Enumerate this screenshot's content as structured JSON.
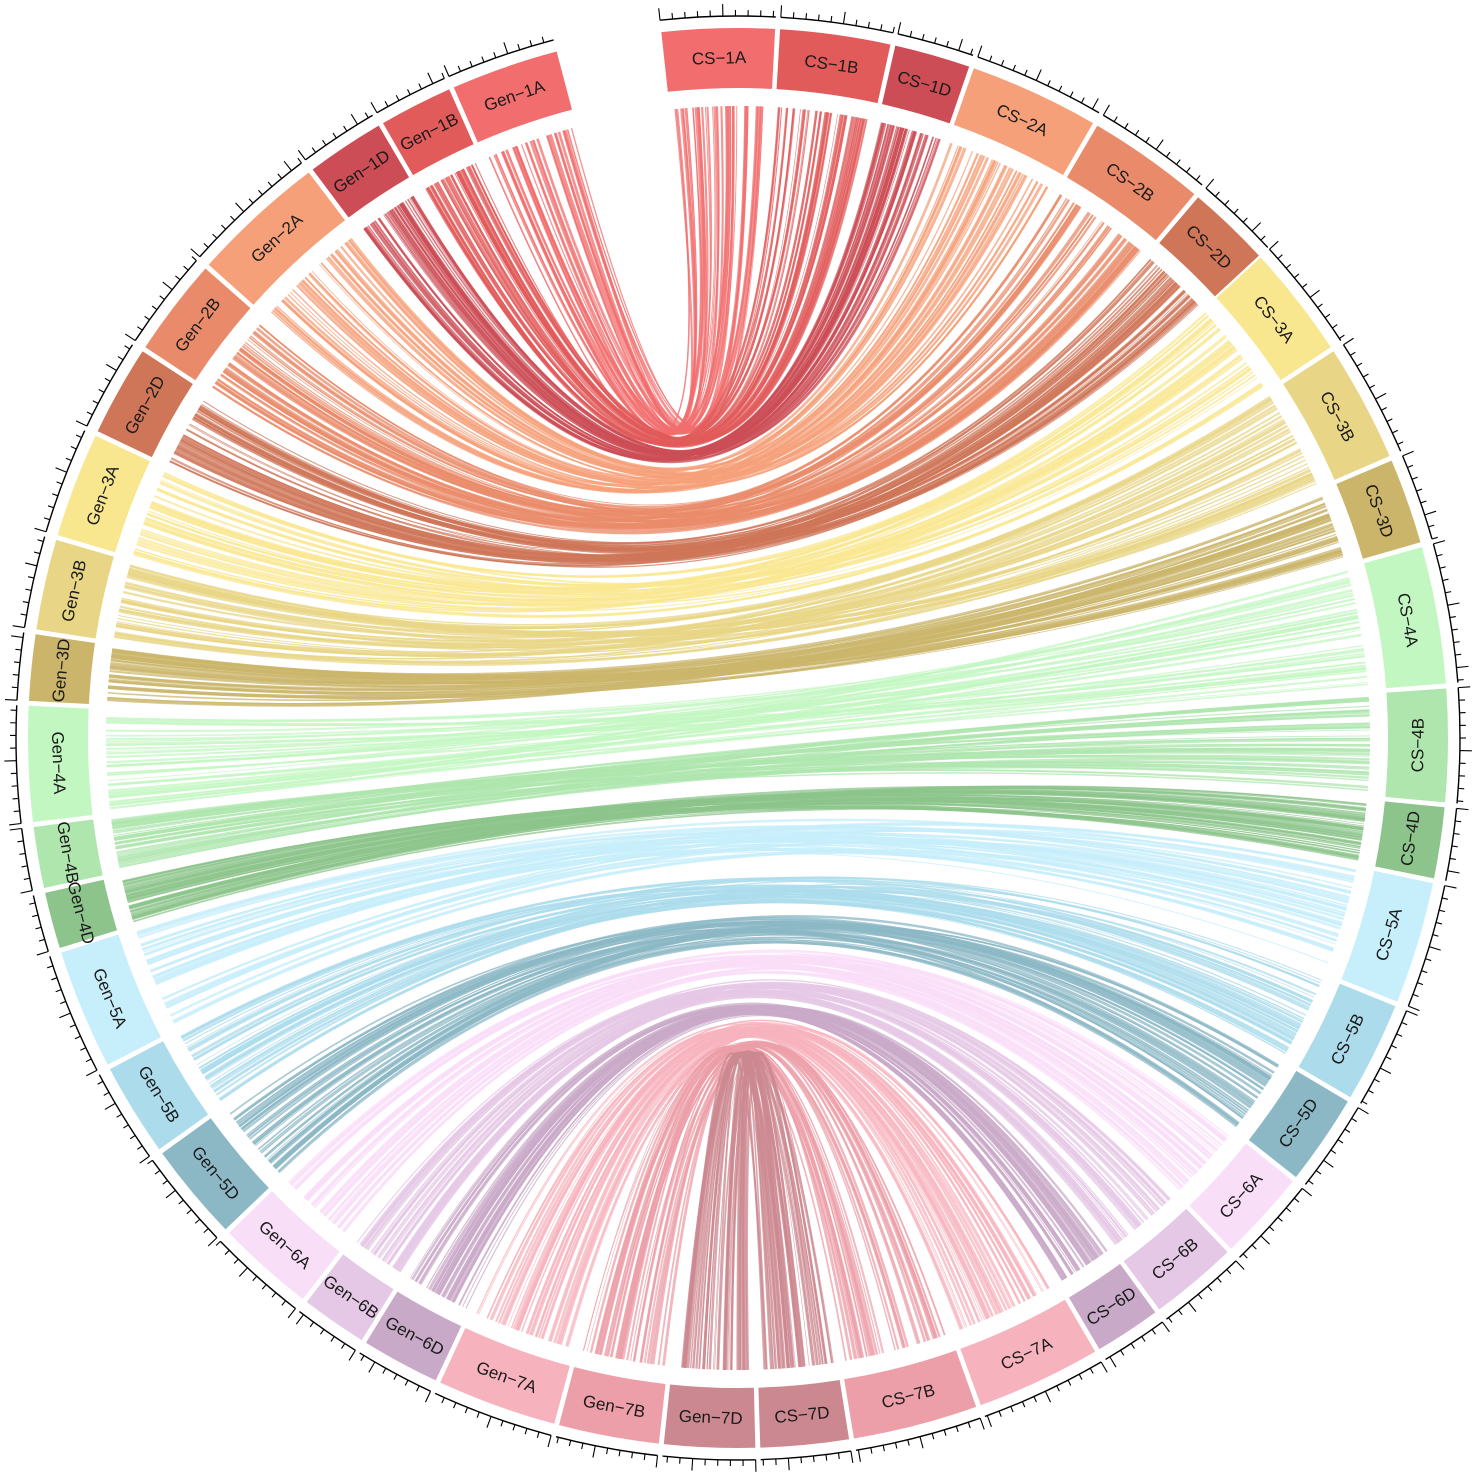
{
  "chart_data": {
    "type": "chord",
    "segments": [
      {
        "label": "CS−1A",
        "color": "#f26d6d",
        "group": 1
      },
      {
        "label": "CS−1B",
        "color": "#e25b5b",
        "group": 1
      },
      {
        "label": "CS−1D",
        "color": "#cc4d55",
        "group": 1
      },
      {
        "label": "CS−2A",
        "color": "#f6a07a",
        "group": 2
      },
      {
        "label": "CS−2B",
        "color": "#e98b6a",
        "group": 2
      },
      {
        "label": "CS−2D",
        "color": "#cf7558",
        "group": 2
      },
      {
        "label": "CS−3A",
        "color": "#f9e790",
        "group": 3
      },
      {
        "label": "CS−3B",
        "color": "#e8d585",
        "group": 3
      },
      {
        "label": "CS−3D",
        "color": "#cbb56b",
        "group": 3
      },
      {
        "label": "CS−4A",
        "color": "#c3f7c1",
        "group": 4
      },
      {
        "label": "CS−4B",
        "color": "#aee6ad",
        "group": 4
      },
      {
        "label": "CS−4D",
        "color": "#8cc48b",
        "group": 4
      },
      {
        "label": "CS−5A",
        "color": "#c6eefb",
        "group": 5
      },
      {
        "label": "CS−5B",
        "color": "#acdcec",
        "group": 5
      },
      {
        "label": "CS−5D",
        "color": "#8cb8c6",
        "group": 5
      },
      {
        "label": "CS−6A",
        "color": "#f9def8",
        "group": 6
      },
      {
        "label": "CS−6B",
        "color": "#e5c8e6",
        "group": 6
      },
      {
        "label": "CS−6D",
        "color": "#c9a9c8",
        "group": 6
      },
      {
        "label": "CS−7A",
        "color": "#f7b3bd",
        "group": 7
      },
      {
        "label": "CS−7B",
        "color": "#ec9fa8",
        "group": 7
      },
      {
        "label": "CS−7D",
        "color": "#cc8890",
        "group": 7
      },
      {
        "label": "Gen−7D",
        "color": "#cc8890",
        "group": 7
      },
      {
        "label": "Gen−7B",
        "color": "#ec9fa8",
        "group": 7
      },
      {
        "label": "Gen−7A",
        "color": "#f7b3bd",
        "group": 7
      },
      {
        "label": "Gen−6D",
        "color": "#c9a9c8",
        "group": 6
      },
      {
        "label": "Gen−6B",
        "color": "#e5c8e6",
        "group": 6
      },
      {
        "label": "Gen−6A",
        "color": "#f9def8",
        "group": 6
      },
      {
        "label": "Gen−5D",
        "color": "#8cb8c6",
        "group": 5
      },
      {
        "label": "Gen−5B",
        "color": "#acdcec",
        "group": 5
      },
      {
        "label": "Gen−5A",
        "color": "#c6eefb",
        "group": 5
      },
      {
        "label": "Gen−4D",
        "color": "#8cc48b",
        "group": 4
      },
      {
        "label": "Gen−4B",
        "color": "#aee6ad",
        "group": 4
      },
      {
        "label": "Gen−4A",
        "color": "#c3f7c1",
        "group": 4
      },
      {
        "label": "Gen−3D",
        "color": "#cbb56b",
        "group": 3
      },
      {
        "label": "Gen−3B",
        "color": "#e8d585",
        "group": 3
      },
      {
        "label": "Gen−3A",
        "color": "#f9e790",
        "group": 3
      },
      {
        "label": "Gen−2D",
        "color": "#cf7558",
        "group": 2
      },
      {
        "label": "Gen−2B",
        "color": "#e98b6a",
        "group": 2
      },
      {
        "label": "Gen−2A",
        "color": "#f6a07a",
        "group": 2
      },
      {
        "label": "Gen−1D",
        "color": "#cc4d55",
        "group": 1
      },
      {
        "label": "Gen−1B",
        "color": "#e25b5b",
        "group": 1
      },
      {
        "label": "Gen−1A",
        "color": "#f26d6d",
        "group": 1
      }
    ],
    "links": "collinear gene pairs connect each CS chromosome to its Gen homolog (1A↔1A, …, 7D↔7D)"
  }
}
